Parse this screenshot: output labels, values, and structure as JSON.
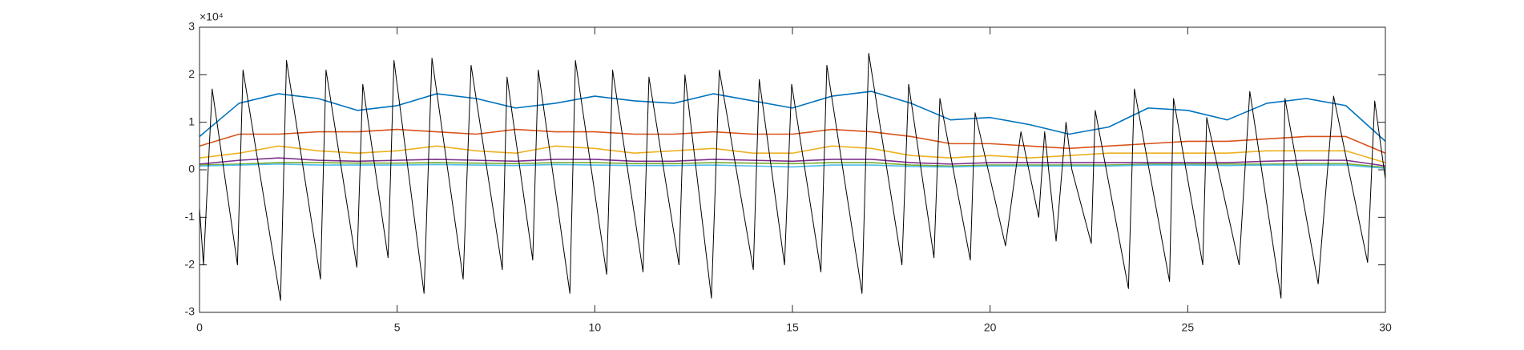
{
  "chart_data": {
    "type": "line",
    "exponent_label": "×10⁴",
    "xlim": [
      0,
      30
    ],
    "xticks": [
      0,
      5,
      10,
      15,
      20,
      25,
      30
    ],
    "ylim": [
      -3,
      3
    ],
    "yticks": [
      -3,
      -2,
      -1,
      0,
      1,
      2,
      3
    ],
    "box": true,
    "series": [
      {
        "color": "#0072BD",
        "x": [
          0,
          1,
          2,
          3,
          4,
          5,
          6,
          7,
          8,
          9,
          10,
          11,
          12,
          13,
          14,
          15,
          16,
          17,
          18,
          19,
          20,
          21,
          22,
          23,
          24,
          25,
          26,
          27,
          28,
          29,
          30
        ],
        "values": [
          0.7,
          1.4,
          1.6,
          1.5,
          1.25,
          1.35,
          1.6,
          1.5,
          1.3,
          1.4,
          1.55,
          1.45,
          1.4,
          1.6,
          1.45,
          1.3,
          1.55,
          1.65,
          1.4,
          1.05,
          1.1,
          0.95,
          0.75,
          0.9,
          1.3,
          1.25,
          1.05,
          1.4,
          1.5,
          1.35,
          0.6
        ]
      },
      {
        "color": "#D95319",
        "x": [
          0,
          1,
          2,
          3,
          4,
          5,
          6,
          7,
          8,
          9,
          10,
          11,
          12,
          13,
          14,
          15,
          16,
          17,
          18,
          19,
          20,
          21,
          22,
          23,
          24,
          25,
          26,
          27,
          28,
          29,
          30
        ],
        "values": [
          0.5,
          0.75,
          0.75,
          0.8,
          0.8,
          0.85,
          0.8,
          0.75,
          0.85,
          0.8,
          0.8,
          0.75,
          0.75,
          0.8,
          0.75,
          0.75,
          0.85,
          0.8,
          0.7,
          0.55,
          0.55,
          0.5,
          0.45,
          0.5,
          0.55,
          0.6,
          0.6,
          0.65,
          0.7,
          0.7,
          0.35
        ]
      },
      {
        "color": "#EDB120",
        "x": [
          0,
          1,
          2,
          3,
          4,
          5,
          6,
          7,
          8,
          9,
          10,
          11,
          12,
          13,
          14,
          15,
          16,
          17,
          18,
          19,
          20,
          21,
          22,
          23,
          24,
          25,
          26,
          27,
          28,
          29,
          30
        ],
        "values": [
          0.25,
          0.35,
          0.5,
          0.4,
          0.35,
          0.4,
          0.5,
          0.4,
          0.35,
          0.5,
          0.45,
          0.35,
          0.4,
          0.45,
          0.35,
          0.35,
          0.5,
          0.45,
          0.3,
          0.25,
          0.3,
          0.25,
          0.3,
          0.35,
          0.35,
          0.35,
          0.35,
          0.4,
          0.4,
          0.4,
          0.15
        ]
      },
      {
        "color": "#7E2F8E",
        "x": [
          0,
          1,
          2,
          3,
          4,
          5,
          6,
          7,
          8,
          9,
          10,
          11,
          12,
          13,
          14,
          15,
          16,
          17,
          18,
          19,
          20,
          21,
          22,
          23,
          24,
          25,
          26,
          27,
          28,
          29,
          30
        ],
        "values": [
          0.12,
          0.2,
          0.25,
          0.2,
          0.18,
          0.2,
          0.22,
          0.2,
          0.18,
          0.22,
          0.22,
          0.18,
          0.18,
          0.22,
          0.2,
          0.18,
          0.22,
          0.22,
          0.15,
          0.12,
          0.15,
          0.15,
          0.15,
          0.15,
          0.15,
          0.15,
          0.15,
          0.18,
          0.2,
          0.2,
          0.08
        ]
      },
      {
        "color": "#77AC30",
        "x": [
          0,
          1,
          2,
          3,
          4,
          5,
          6,
          7,
          8,
          9,
          10,
          11,
          12,
          13,
          14,
          15,
          16,
          17,
          18,
          19,
          20,
          21,
          22,
          23,
          24,
          25,
          26,
          27,
          28,
          29,
          30
        ],
        "values": [
          0.1,
          0.12,
          0.15,
          0.15,
          0.14,
          0.14,
          0.15,
          0.14,
          0.13,
          0.15,
          0.15,
          0.13,
          0.13,
          0.15,
          0.14,
          0.13,
          0.15,
          0.15,
          0.1,
          0.08,
          0.1,
          0.1,
          0.1,
          0.1,
          0.12,
          0.12,
          0.12,
          0.12,
          0.13,
          0.13,
          0.05
        ]
      },
      {
        "color": "#4DBEEE",
        "x": [
          0,
          1,
          2,
          3,
          4,
          5,
          6,
          7,
          8,
          9,
          10,
          11,
          12,
          13,
          14,
          15,
          16,
          17,
          18,
          19,
          20,
          21,
          22,
          23,
          24,
          25,
          26,
          27,
          28,
          29,
          30
        ],
        "values": [
          0.08,
          0.1,
          0.12,
          0.1,
          0.1,
          0.1,
          0.11,
          0.1,
          0.09,
          0.11,
          0.1,
          0.09,
          0.09,
          0.1,
          0.08,
          0.06,
          0.1,
          0.1,
          0.07,
          0.06,
          0.08,
          0.08,
          0.08,
          0.08,
          0.1,
          0.1,
          0.09,
          0.1,
          0.1,
          0.1,
          0.03
        ]
      },
      {
        "color": "#000000",
        "x": [
          0,
          0.1,
          0.32,
          0.96,
          1.1,
          2.05,
          2.2,
          3.06,
          3.2,
          3.98,
          4.13,
          4.77,
          4.92,
          5.68,
          5.88,
          6.67,
          6.87,
          7.66,
          7.78,
          8.43,
          8.57,
          9.37,
          9.51,
          10.3,
          10.45,
          11.22,
          11.37,
          12.13,
          12.28,
          12.95,
          13.15,
          14.01,
          14.16,
          14.8,
          14.98,
          15.72,
          15.87,
          16.76,
          16.93,
          17.77,
          17.94,
          18.58,
          18.73,
          19.5,
          19.62,
          20.39,
          20.78,
          21.23,
          21.38,
          21.67,
          21.92,
          22.07,
          22.56,
          22.66,
          23.5,
          23.65,
          24.54,
          24.64,
          25.38,
          25.48,
          26.3,
          26.57,
          27.36,
          27.46,
          28.3,
          28.69,
          29.55,
          29.73,
          30
        ],
        "values": [
          -0.8,
          -2.0,
          1.7,
          -2.0,
          2.1,
          -2.75,
          2.3,
          -2.3,
          2.1,
          -2.05,
          1.8,
          -1.85,
          2.3,
          -2.6,
          2.35,
          -2.3,
          2.2,
          -2.1,
          1.95,
          -1.9,
          2.1,
          -2.6,
          2.3,
          -2.2,
          2.1,
          -2.15,
          1.95,
          -2.0,
          2.0,
          -2.7,
          2.1,
          -2.1,
          1.9,
          -2.0,
          1.8,
          -2.15,
          2.2,
          -2.6,
          2.45,
          -2.0,
          1.8,
          -1.85,
          1.5,
          -1.9,
          1.2,
          -1.6,
          0.8,
          -1.0,
          0.8,
          -1.5,
          1.0,
          0.0,
          -1.55,
          1.25,
          -2.5,
          1.7,
          -2.35,
          1.5,
          -2.0,
          1.1,
          -2.0,
          1.65,
          -2.7,
          1.5,
          -2.4,
          1.55,
          -1.95,
          1.45,
          -0.2
        ]
      }
    ]
  }
}
